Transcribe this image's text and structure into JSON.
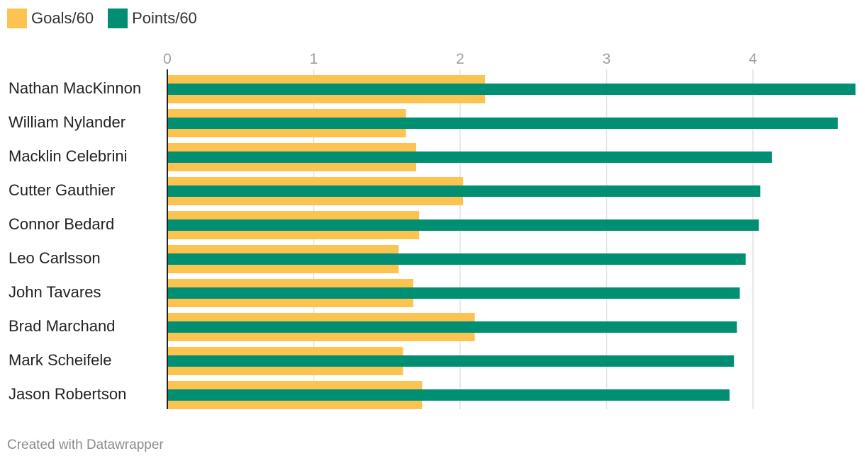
{
  "chart_data": {
    "type": "bar",
    "orientation": "horizontal",
    "categories": [
      "Nathan MacKinnon",
      "William Nylander",
      "Macklin Celebrini",
      "Cutter Gauthier",
      "Connor Bedard",
      "Leo Carlsson",
      "John Tavares",
      "Brad Marchand",
      "Mark Scheifele",
      "Jason Robertson"
    ],
    "series": [
      {
        "name": "Goals/60",
        "color": "#fdc350",
        "values": [
          2.17,
          1.63,
          1.7,
          2.02,
          1.72,
          1.58,
          1.68,
          2.1,
          1.61,
          1.74
        ]
      },
      {
        "name": "Points/60",
        "color": "#008f72",
        "values": [
          4.7,
          4.58,
          4.13,
          4.05,
          4.04,
          3.95,
          3.91,
          3.89,
          3.87,
          3.84
        ]
      }
    ],
    "xticks": [
      "0",
      "1",
      "2",
      "3",
      "4"
    ],
    "xlim": [
      0,
      4.7
    ],
    "title": "",
    "xlabel": "",
    "ylabel": ""
  },
  "footer": {
    "credit": "Created with Datawrapper"
  }
}
